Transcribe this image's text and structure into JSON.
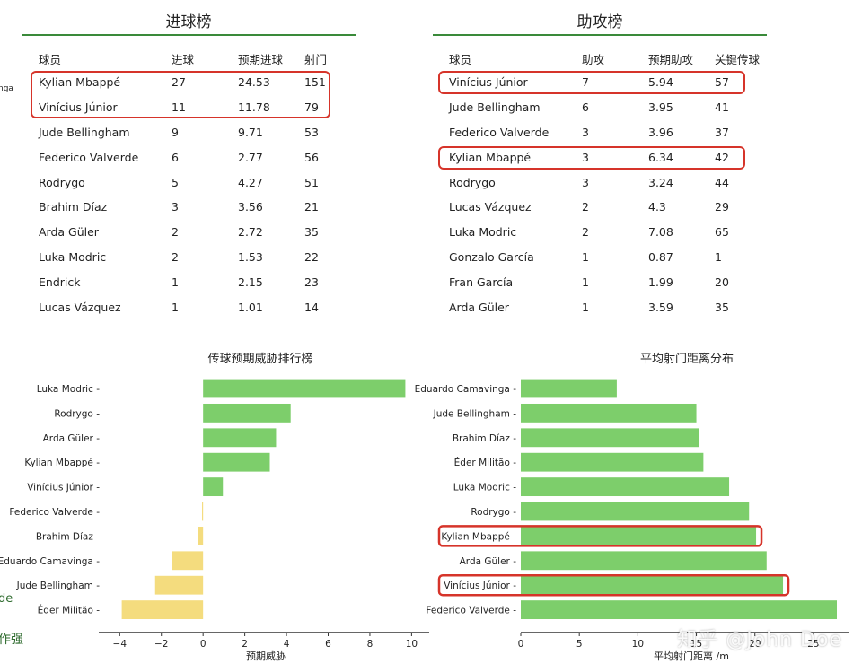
{
  "colors": {
    "green_text": "#2e8b2e",
    "red_text": "#d9342b",
    "bar_positive": "#7dce6b",
    "bar_negative": "#f4dc7e",
    "highlight": "#d6342a"
  },
  "goals": {
    "title": "进球榜",
    "headers": [
      "球员",
      "进球",
      "预期进球",
      "射门"
    ],
    "rows": [
      {
        "player": "Kylian Mbappé",
        "c1": "27",
        "c2": "24.53",
        "c3": "151",
        "color": "green"
      },
      {
        "player": "Vinícius Júnior",
        "c1": "11",
        "c2": "11.78",
        "c3": "79",
        "color": "red"
      },
      {
        "player": "Jude Bellingham",
        "c1": "9",
        "c2": "9.71",
        "c3": "53",
        "color": "red"
      },
      {
        "player": "Federico Valverde",
        "c1": "6",
        "c2": "2.77",
        "c3": "56",
        "color": "green"
      },
      {
        "player": "Rodrygo",
        "c1": "5",
        "c2": "4.27",
        "c3": "51",
        "color": "green"
      },
      {
        "player": "Brahim Díaz",
        "c1": "3",
        "c2": "3.56",
        "c3": "21",
        "color": "red"
      },
      {
        "player": "Arda Güler",
        "c1": "2",
        "c2": "2.72",
        "c3": "35",
        "color": "red"
      },
      {
        "player": "Luka Modric",
        "c1": "2",
        "c2": "1.53",
        "c3": "22",
        "color": "green"
      },
      {
        "player": "Endrick",
        "c1": "1",
        "c2": "2.15",
        "c3": "23",
        "color": "red"
      },
      {
        "player": "Lucas Vázquez",
        "c1": "1",
        "c2": "1.01",
        "c3": "14",
        "color": "red"
      }
    ]
  },
  "assists": {
    "title": "助攻榜",
    "headers": [
      "球员",
      "助攻",
      "预期助攻",
      "关键传球"
    ],
    "rows": [
      {
        "player": "Vinícius Júnior",
        "c1": "7",
        "c2": "5.94",
        "c3": "57",
        "color": "green"
      },
      {
        "player": "Jude Bellingham",
        "c1": "6",
        "c2": "3.95",
        "c3": "41",
        "color": "green"
      },
      {
        "player": "Federico Valverde",
        "c1": "3",
        "c2": "3.96",
        "c3": "37",
        "color": "red"
      },
      {
        "player": "Kylian Mbappé",
        "c1": "3",
        "c2": "6.34",
        "c3": "42",
        "color": "red"
      },
      {
        "player": "Rodrygo",
        "c1": "3",
        "c2": "3.24",
        "c3": "44",
        "color": "red"
      },
      {
        "player": "Lucas Vázquez",
        "c1": "2",
        "c2": "4.3",
        "c3": "29",
        "color": "red"
      },
      {
        "player": "Luka Modric",
        "c1": "2",
        "c2": "7.08",
        "c3": "65",
        "color": "red"
      },
      {
        "player": "Gonzalo García",
        "c1": "1",
        "c2": "0.87",
        "c3": "1",
        "color": "green"
      },
      {
        "player": "Fran García",
        "c1": "1",
        "c2": "1.99",
        "c3": "20",
        "color": "red"
      },
      {
        "player": "Arda Güler",
        "c1": "1",
        "c2": "3.59",
        "c3": "35",
        "color": "red"
      }
    ]
  },
  "edge_fragments": {
    "left_top": "nga",
    "left_mid": "de",
    "left_bottom": "作强"
  },
  "watermark": "知乎 @John Doe",
  "chart_data": [
    {
      "type": "bar",
      "orientation": "horizontal",
      "title": "传球预期威胁排行榜",
      "xlabel": "预期威胁",
      "xlim": [
        -4.4,
        10.5
      ],
      "xticks": [
        -4,
        -2,
        0,
        2,
        4,
        6,
        8,
        10
      ],
      "categories": [
        "Luka Modric",
        "Rodrygo",
        "Arda Güler",
        "Kylian Mbappé",
        "Vinícius Júnior",
        "Federico Valverde",
        "Brahim Díaz",
        "Eduardo Camavinga",
        "Jude Bellingham",
        "Éder Militão"
      ],
      "values": [
        9.7,
        4.2,
        3.5,
        3.2,
        0.95,
        -0.05,
        -0.25,
        -1.5,
        -2.3,
        -3.9
      ]
    },
    {
      "type": "bar",
      "orientation": "horizontal",
      "title": "平均射门距离分布",
      "xlabel": "平均射门距离 /m",
      "xlim": [
        0,
        27
      ],
      "xticks": [
        0,
        5,
        10,
        15,
        20,
        25
      ],
      "categories": [
        "Eduardo Camavinga",
        "Jude Bellingham",
        "Brahim Díaz",
        "Éder Militão",
        "Luka Modric",
        "Rodrygo",
        "Kylian Mbappé",
        "Arda Güler",
        "Vinícius Júnior",
        "Federico Valverde"
      ],
      "values": [
        8.2,
        15.0,
        15.2,
        15.6,
        17.8,
        19.5,
        20.1,
        21.0,
        22.4,
        27.0
      ],
      "highlighted": [
        "Kylian Mbappé",
        "Vinícius Júnior"
      ]
    }
  ]
}
